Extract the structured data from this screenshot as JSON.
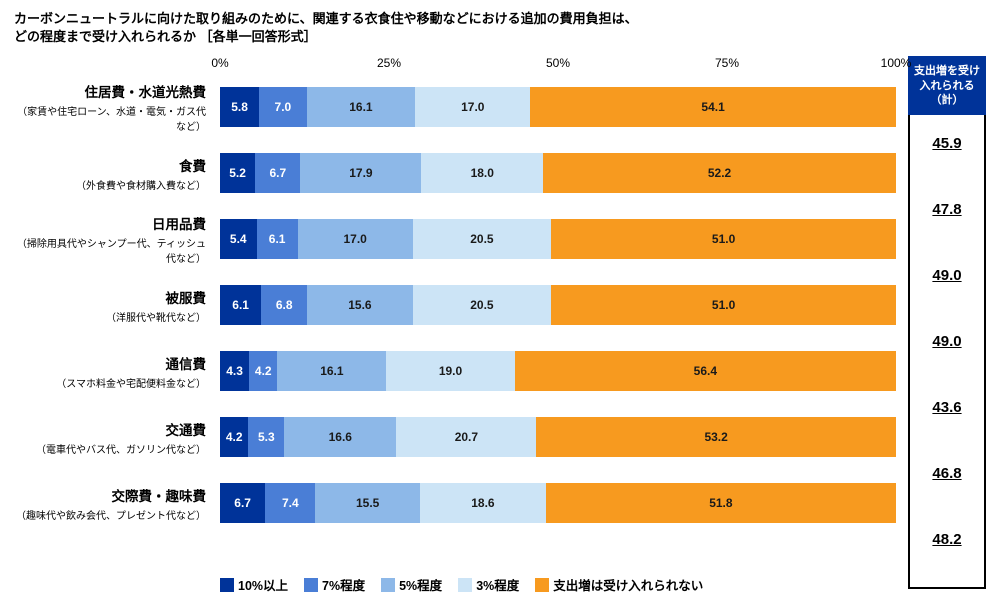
{
  "title_line1": "カーボンニュートラルに向けた取り組みのために、関連する衣食住や移動などにおける追加の費用負担は、",
  "title_line2": "どの程度まで受け入れられるか ［各単一回答形式］",
  "axis": {
    "ticks": [
      0,
      25,
      50,
      75,
      100
    ],
    "labels": [
      "0%",
      "25%",
      "50%",
      "75%",
      "100%"
    ]
  },
  "colors": {
    "seg1": "#003399",
    "seg1_text": "#ffffff",
    "seg2": "#4a7ed6",
    "seg2_text": "#ffffff",
    "seg3": "#8db8e8",
    "seg3_text": "#1a1a1a",
    "seg4": "#cce4f6",
    "seg4_text": "#1a1a1a",
    "seg5": "#f79a1f",
    "seg5_text": "#1a1a1a",
    "total_header_bg": "#003399"
  },
  "legend": [
    {
      "label": "10%以上",
      "color": "#003399"
    },
    {
      "label": "7%程度",
      "color": "#4a7ed6"
    },
    {
      "label": "5%程度",
      "color": "#8db8e8"
    },
    {
      "label": "3%程度",
      "color": "#cce4f6"
    },
    {
      "label": "支出増は受け入れられない",
      "color": "#f79a1f"
    }
  ],
  "total_header": "支出増を受け入れられる（計）",
  "rows": [
    {
      "label": "住居費・水道光熱費",
      "sub": "（家賃や住宅ローン、水道・電気・ガス代など）",
      "v": [
        5.8,
        7.0,
        16.1,
        17.0,
        54.1
      ],
      "total": "45.9"
    },
    {
      "label": "食費",
      "sub": "（外食費や食材購入費など）",
      "v": [
        5.2,
        6.7,
        17.9,
        18.0,
        52.2
      ],
      "total": "47.8"
    },
    {
      "label": "日用品費",
      "sub": "（掃除用具代やシャンプー代、ティッシュ代など）",
      "v": [
        5.4,
        6.1,
        17.0,
        20.5,
        51.0
      ],
      "total": "49.0"
    },
    {
      "label": "被服費",
      "sub": "（洋服代や靴代など）",
      "v": [
        6.1,
        6.8,
        15.6,
        20.5,
        51.0
      ],
      "total": "49.0"
    },
    {
      "label": "通信費",
      "sub": "（スマホ料金や宅配便料金など）",
      "v": [
        4.3,
        4.2,
        16.1,
        19.0,
        56.4
      ],
      "total": "43.6"
    },
    {
      "label": "交通費",
      "sub": "（電車代やバス代、ガソリン代など）",
      "v": [
        4.2,
        5.3,
        16.6,
        20.7,
        53.2
      ],
      "total": "46.8"
    },
    {
      "label": "交際費・趣味費",
      "sub": "（趣味代や飲み会代、プレゼント代など）",
      "v": [
        6.7,
        7.4,
        15.5,
        18.6,
        51.8
      ],
      "total": "48.2"
    }
  ]
}
